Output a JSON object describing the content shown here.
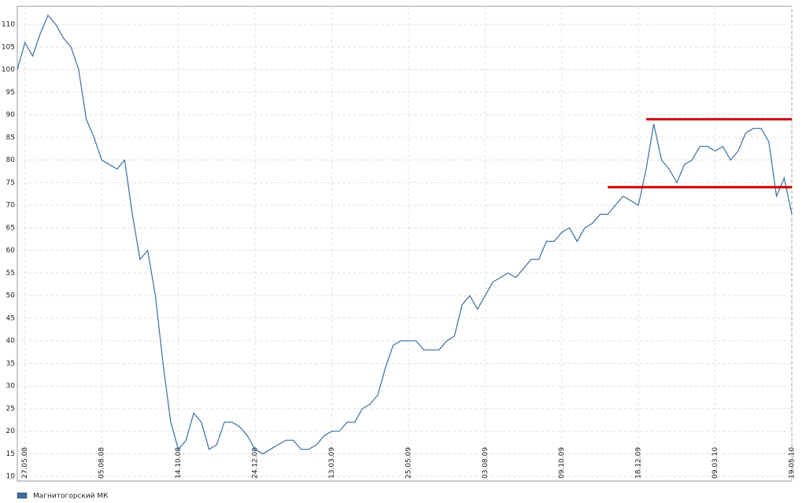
{
  "chart_data": {
    "type": "line",
    "categories": [
      null,
      "27.05.08",
      null,
      null,
      null,
      null,
      null,
      null,
      null,
      null,
      null,
      "05.08.08",
      null,
      null,
      null,
      null,
      null,
      null,
      null,
      null,
      null,
      "14.10.08",
      null,
      null,
      null,
      null,
      null,
      null,
      null,
      null,
      null,
      "24.12.08",
      null,
      null,
      null,
      null,
      null,
      null,
      null,
      null,
      null,
      "13.03.09",
      null,
      null,
      null,
      null,
      null,
      null,
      null,
      null,
      null,
      "25.05.09",
      null,
      null,
      null,
      null,
      null,
      null,
      null,
      null,
      null,
      "03.08.09",
      null,
      null,
      null,
      null,
      null,
      null,
      null,
      null,
      null,
      "09.10.09",
      null,
      null,
      null,
      null,
      null,
      null,
      null,
      null,
      null,
      "18.12.09",
      null,
      null,
      null,
      null,
      null,
      null,
      null,
      null,
      null,
      "09.03.10",
      null,
      null,
      null,
      null,
      null,
      null,
      null,
      null,
      null,
      "19.05.10"
    ],
    "series": [
      {
        "name": "Магнитогорский МК",
        "color": "#3a6ea5",
        "values": [
          100,
          106,
          103,
          108,
          112,
          110,
          107,
          105,
          100,
          89,
          85,
          80,
          79,
          78,
          80,
          68,
          58,
          60,
          50,
          35,
          22,
          16,
          18,
          24,
          22,
          16,
          17,
          22,
          22,
          21,
          19,
          16,
          15,
          16,
          17,
          18,
          18,
          16,
          16,
          17,
          19,
          20,
          20,
          22,
          22,
          25,
          26,
          28,
          34,
          39,
          40,
          40,
          40,
          38,
          38,
          38,
          40,
          41,
          48,
          50,
          47,
          50,
          53,
          54,
          55,
          54,
          56,
          58,
          58,
          62,
          62,
          64,
          65,
          62,
          65,
          66,
          68,
          68,
          70,
          72,
          71,
          70,
          78,
          88,
          80,
          78,
          75,
          79,
          80,
          83,
          83,
          82,
          83,
          80,
          82,
          86,
          87,
          87,
          84,
          72,
          76,
          68
        ]
      }
    ],
    "ylim": [
      9,
      114
    ],
    "yticks": [
      10,
      15,
      20,
      25,
      30,
      35,
      40,
      45,
      50,
      55,
      60,
      65,
      70,
      75,
      80,
      85,
      90,
      95,
      100,
      105,
      110
    ],
    "grid": true,
    "hlines": [
      {
        "value": 89,
        "x_start": 82,
        "color": "#cc0000"
      },
      {
        "value": 74,
        "x_start": 77,
        "color": "#cc0000"
      }
    ],
    "legend": "bottom-left"
  }
}
